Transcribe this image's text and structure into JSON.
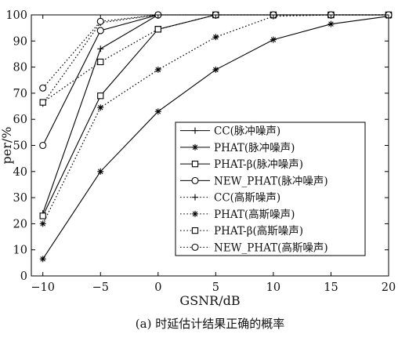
{
  "chart_data": {
    "type": "line",
    "title": "",
    "caption": "(a) 时延估计结果正确的概率",
    "xlabel": "GSNR/dB",
    "ylabel": "per/%",
    "x": [
      -10,
      -5,
      0,
      5,
      10,
      15,
      20
    ],
    "xlim": [
      -11,
      20
    ],
    "ylim": [
      0,
      100
    ],
    "xticks": [
      "−10",
      "−5",
      "0",
      "5",
      "10",
      "15",
      "20"
    ],
    "yticks": [
      "0",
      "10",
      "20",
      "30",
      "40",
      "50",
      "60",
      "70",
      "80",
      "90",
      "100"
    ],
    "grid": false,
    "legend_position": "lower-right",
    "series": [
      {
        "name": "CC(脉冲噪声)",
        "line_style": "solid",
        "marker": "plus",
        "values": [
          24,
          87,
          100,
          100,
          100,
          100,
          100
        ]
      },
      {
        "name": "PHAT(脉冲噪声)",
        "line_style": "solid",
        "marker": "asterisk",
        "values": [
          6.5,
          40,
          63,
          79,
          90.5,
          96.5,
          99.5
        ]
      },
      {
        "name": "PHAT-β(脉冲噪声)",
        "line_style": "solid",
        "marker": "square",
        "values": [
          23,
          69,
          94.5,
          100,
          100,
          100,
          100
        ]
      },
      {
        "name": "NEW_PHAT(脉冲噪声)",
        "line_style": "solid",
        "marker": "circle",
        "values": [
          50,
          94,
          100,
          100,
          100,
          100,
          100
        ]
      },
      {
        "name": "CC(高斯噪声)",
        "line_style": "dotted",
        "marker": "plus",
        "values": [
          66,
          97,
          100,
          100,
          100,
          100,
          100
        ]
      },
      {
        "name": "PHAT(高斯噪声)",
        "line_style": "dotted",
        "marker": "asterisk",
        "values": [
          20,
          64.5,
          79,
          91.5,
          99.5,
          100,
          100
        ]
      },
      {
        "name": "PHAT-β(高斯噪声)",
        "line_style": "dotted",
        "marker": "square",
        "values": [
          66.5,
          82,
          94.5,
          100,
          100,
          100,
          100
        ]
      },
      {
        "name": "NEW_PHAT(高斯噪声)",
        "line_style": "dotted",
        "marker": "circle",
        "values": [
          72,
          97.5,
          100,
          100,
          100,
          100,
          100
        ]
      }
    ]
  }
}
